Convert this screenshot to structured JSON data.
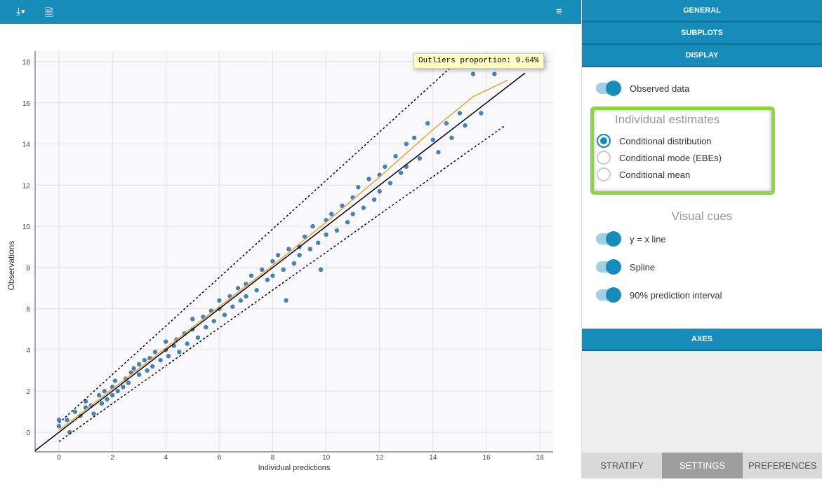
{
  "toolbar": {
    "icons": [
      "download-icon",
      "word-doc-icon",
      "menu-icon"
    ]
  },
  "tooltip": "Outliers proportion: 9.64%",
  "side": {
    "headers": {
      "general": "GENERAL",
      "subplots": "SUBPLOTS",
      "display": "DISPLAY",
      "axes": "AXES"
    },
    "observed": "Observed data",
    "estimates_title": "Individual estimates",
    "estimates": [
      "Conditional distribution",
      "Conditional mode (EBEs)",
      "Conditional mean"
    ],
    "estimates_selected": 0,
    "cues_title": "Visual cues",
    "cues": [
      "y = x line",
      "Spline",
      "90% prediction interval"
    ],
    "tabs": [
      "STRATIFY",
      "SETTINGS",
      "PREFERENCES"
    ],
    "active_tab": 1,
    "accent": "#178bba"
  },
  "chart_data": {
    "type": "scatter",
    "xlabel": "Individual predictions",
    "ylabel": "Observations",
    "xlim": [
      -0.9,
      18.5
    ],
    "ylim": [
      -0.9,
      18.5
    ],
    "xticks": [
      0,
      2,
      4,
      6,
      8,
      10,
      12,
      14,
      16,
      18
    ],
    "yticks": [
      0,
      2,
      4,
      6,
      8,
      10,
      12,
      14,
      16,
      18
    ],
    "grid": true,
    "point_color": "#4682b4",
    "points": [
      [
        0,
        0.6
      ],
      [
        0,
        0.3
      ],
      [
        0.4,
        0
      ],
      [
        0.3,
        0.6
      ],
      [
        0.6,
        1
      ],
      [
        0.8,
        0.8
      ],
      [
        1,
        1.2
      ],
      [
        1,
        1.5
      ],
      [
        1.2,
        1.3
      ],
      [
        1.3,
        0.9
      ],
      [
        1.5,
        1.8
      ],
      [
        1.6,
        1.4
      ],
      [
        1.7,
        2
      ],
      [
        1.8,
        1.6
      ],
      [
        2,
        2.2
      ],
      [
        2,
        1.8
      ],
      [
        2.1,
        2.5
      ],
      [
        2.2,
        2
      ],
      [
        2.4,
        2.2
      ],
      [
        2.5,
        2.6
      ],
      [
        2.6,
        2.4
      ],
      [
        2.7,
        2.9
      ],
      [
        2.8,
        3.1
      ],
      [
        3,
        2.8
      ],
      [
        3,
        3.3
      ],
      [
        3.2,
        3.5
      ],
      [
        3.3,
        3
      ],
      [
        3.4,
        3.6
      ],
      [
        3.5,
        3.2
      ],
      [
        3.6,
        3.9
      ],
      [
        3.8,
        3.5
      ],
      [
        4,
        4
      ],
      [
        4,
        4.4
      ],
      [
        4.1,
        3.7
      ],
      [
        4.3,
        4.2
      ],
      [
        4.4,
        4.5
      ],
      [
        4.5,
        3.9
      ],
      [
        4.7,
        4.8
      ],
      [
        4.8,
        4.3
      ],
      [
        5,
        5
      ],
      [
        5,
        5.5
      ],
      [
        5.2,
        4.6
      ],
      [
        5.4,
        5.6
      ],
      [
        5.5,
        5.1
      ],
      [
        5.7,
        5.9
      ],
      [
        5.8,
        5.4
      ],
      [
        6,
        6
      ],
      [
        6,
        6.4
      ],
      [
        6.2,
        5.7
      ],
      [
        6.4,
        6.6
      ],
      [
        6.5,
        6.1
      ],
      [
        6.7,
        7
      ],
      [
        6.8,
        6.4
      ],
      [
        7,
        7.2
      ],
      [
        7,
        6.6
      ],
      [
        7.2,
        7.6
      ],
      [
        7.4,
        6.9
      ],
      [
        7.6,
        7.9
      ],
      [
        7.8,
        7.4
      ],
      [
        8,
        8.3
      ],
      [
        8,
        7.6
      ],
      [
        8.2,
        8.6
      ],
      [
        8.4,
        7.9
      ],
      [
        8.5,
        6.4
      ],
      [
        8.6,
        8.9
      ],
      [
        8.8,
        8.2
      ],
      [
        9,
        9
      ],
      [
        9,
        8.6
      ],
      [
        9.2,
        9.5
      ],
      [
        9.4,
        8.9
      ],
      [
        9.5,
        10
      ],
      [
        9.7,
        9.2
      ],
      [
        9.8,
        7.9
      ],
      [
        10,
        10.3
      ],
      [
        10,
        9.6
      ],
      [
        10.2,
        10.6
      ],
      [
        10.4,
        9.8
      ],
      [
        10.6,
        11
      ],
      [
        10.8,
        10.2
      ],
      [
        11,
        11.4
      ],
      [
        11,
        10.6
      ],
      [
        11.2,
        11.9
      ],
      [
        11.4,
        10.9
      ],
      [
        11.6,
        12.3
      ],
      [
        11.8,
        11.3
      ],
      [
        12,
        12.5
      ],
      [
        12,
        11.7
      ],
      [
        12.2,
        12.9
      ],
      [
        12.4,
        12.1
      ],
      [
        12.6,
        13.4
      ],
      [
        12.8,
        12.6
      ],
      [
        13,
        14
      ],
      [
        13,
        12.9
      ],
      [
        13.3,
        14.3
      ],
      [
        13.5,
        13.3
      ],
      [
        13.8,
        15
      ],
      [
        14,
        14.2
      ],
      [
        14.2,
        13.6
      ],
      [
        14.5,
        15
      ],
      [
        14.7,
        14.3
      ],
      [
        15,
        15.5
      ],
      [
        15.2,
        14.9
      ],
      [
        15.5,
        17.4
      ],
      [
        15.8,
        15.5
      ],
      [
        16,
        17.8
      ],
      [
        16.3,
        17.4
      ],
      [
        16.5,
        17.8
      ]
    ],
    "lines": {
      "identity": "#000000",
      "spline": "#e8a23a",
      "interval": "#000000"
    },
    "spline": [
      [
        0,
        0.1
      ],
      [
        2,
        2.1
      ],
      [
        4,
        4.1
      ],
      [
        6,
        6.1
      ],
      [
        8,
        8.1
      ],
      [
        10,
        10.2
      ],
      [
        12,
        12.4
      ],
      [
        14,
        14.7
      ],
      [
        15.5,
        16.3
      ],
      [
        16.8,
        17.1
      ]
    ],
    "interval_upper": [
      [
        0,
        0.45
      ],
      [
        14.9,
        18
      ]
    ],
    "interval_lower": [
      [
        0,
        -0.45
      ],
      [
        16.7,
        14.9
      ]
    ]
  }
}
